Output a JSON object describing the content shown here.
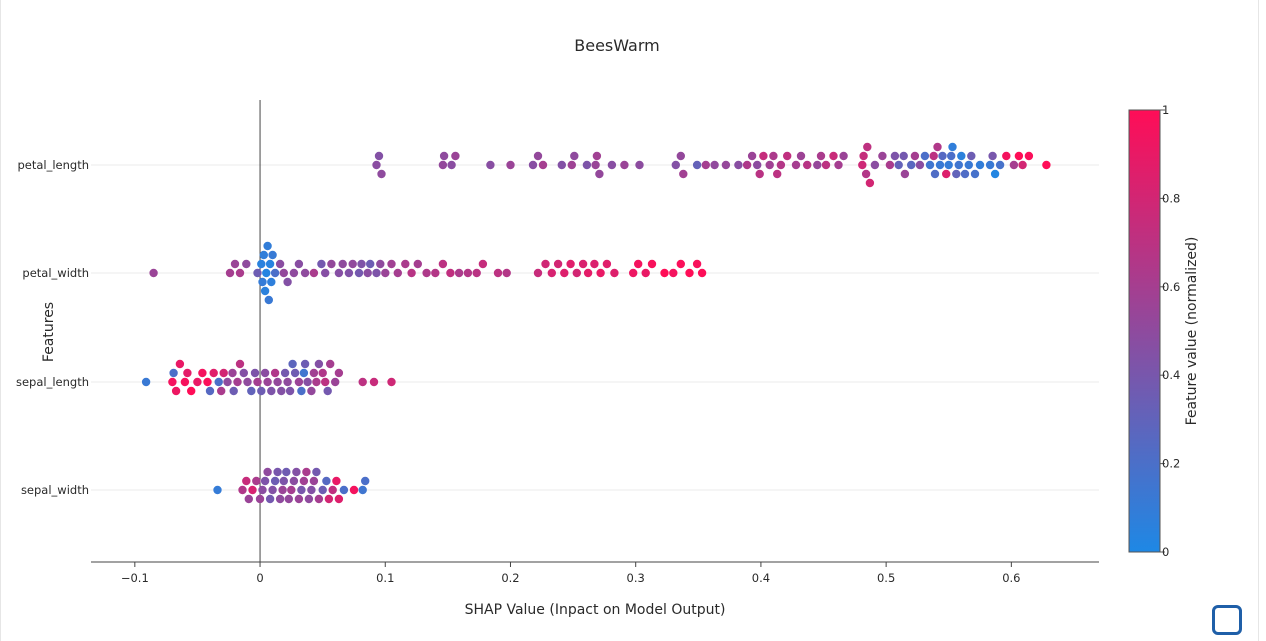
{
  "chart_data": {
    "type": "scatter",
    "title": "BeesWarm",
    "xlabel": "SHAP Value (Inpact on Model Output)",
    "ylabel": "Features",
    "xlim": [
      -0.135,
      0.67
    ],
    "xticks": [
      -0.1,
      0,
      0.1,
      0.2,
      0.3,
      0.4,
      0.5,
      0.6
    ],
    "xtick_labels": [
      "−0.1",
      "0",
      "0.1",
      "0.2",
      "0.3",
      "0.4",
      "0.5",
      "0.6"
    ],
    "categories": [
      "petal_length",
      "petal_width",
      "sepal_length",
      "sepal_width"
    ],
    "zero_line": true,
    "grid": "horizontal",
    "colorbar": {
      "label": "Feature value (normalized)",
      "range": [
        0,
        1
      ],
      "ticks": [
        0,
        0.2,
        0.4,
        0.6,
        0.8,
        1
      ],
      "tick_labels": [
        "0",
        "0.2",
        "0.4",
        "0.6",
        "0.8",
        "1"
      ],
      "colors": [
        "#1e88e5",
        "#ff0d57"
      ]
    },
    "series": [
      {
        "feature": "petal_length",
        "points": [
          [
            0.093,
            0.48
          ],
          [
            0.095,
            0.45
          ],
          [
            0.097,
            0.5
          ],
          [
            0.146,
            0.52
          ],
          [
            0.147,
            0.5
          ],
          [
            0.153,
            0.48
          ],
          [
            0.156,
            0.55
          ],
          [
            0.184,
            0.47
          ],
          [
            0.2,
            0.55
          ],
          [
            0.218,
            0.47
          ],
          [
            0.222,
            0.52
          ],
          [
            0.226,
            0.6
          ],
          [
            0.241,
            0.45
          ],
          [
            0.249,
            0.57
          ],
          [
            0.251,
            0.5
          ],
          [
            0.261,
            0.42
          ],
          [
            0.268,
            0.54
          ],
          [
            0.269,
            0.58
          ],
          [
            0.271,
            0.52
          ],
          [
            0.281,
            0.47
          ],
          [
            0.291,
            0.55
          ],
          [
            0.303,
            0.49
          ],
          [
            0.332,
            0.45
          ],
          [
            0.336,
            0.52
          ],
          [
            0.338,
            0.58
          ],
          [
            0.349,
            0.31
          ],
          [
            0.356,
            0.6
          ],
          [
            0.363,
            0.51
          ],
          [
            0.372,
            0.53
          ],
          [
            0.382,
            0.47
          ],
          [
            0.389,
            0.64
          ],
          [
            0.393,
            0.55
          ],
          [
            0.397,
            0.49
          ],
          [
            0.399,
            0.69
          ],
          [
            0.402,
            0.74
          ],
          [
            0.407,
            0.58
          ],
          [
            0.41,
            0.63
          ],
          [
            0.413,
            0.7
          ],
          [
            0.416,
            0.66
          ],
          [
            0.421,
            0.72
          ],
          [
            0.428,
            0.6
          ],
          [
            0.432,
            0.56
          ],
          [
            0.437,
            0.68
          ],
          [
            0.445,
            0.53
          ],
          [
            0.448,
            0.62
          ],
          [
            0.452,
            0.7
          ],
          [
            0.458,
            0.76
          ],
          [
            0.462,
            0.6
          ],
          [
            0.466,
            0.55
          ],
          [
            0.481,
            0.78
          ],
          [
            0.482,
            0.74
          ],
          [
            0.484,
            0.66
          ],
          [
            0.485,
            0.71
          ],
          [
            0.487,
            0.8
          ],
          [
            0.491,
            0.48
          ],
          [
            0.497,
            0.55
          ],
          [
            0.503,
            0.62
          ],
          [
            0.507,
            0.42
          ],
          [
            0.51,
            0.31
          ],
          [
            0.514,
            0.38
          ],
          [
            0.515,
            0.55
          ],
          [
            0.52,
            0.26
          ],
          [
            0.523,
            0.6
          ],
          [
            0.527,
            0.48
          ],
          [
            0.531,
            0.2
          ],
          [
            0.535,
            0.15
          ],
          [
            0.538,
            0.7
          ],
          [
            0.539,
            0.22
          ],
          [
            0.541,
            0.65
          ],
          [
            0.543,
            0.12
          ],
          [
            0.545,
            0.25
          ],
          [
            0.548,
            0.85
          ],
          [
            0.55,
            0.1
          ],
          [
            0.552,
            0.2
          ],
          [
            0.553,
            0.08
          ],
          [
            0.556,
            0.3
          ],
          [
            0.558,
            0.15
          ],
          [
            0.56,
            0.06
          ],
          [
            0.563,
            0.22
          ],
          [
            0.566,
            0.12
          ],
          [
            0.568,
            0.35
          ],
          [
            0.571,
            0.18
          ],
          [
            0.575,
            0.09
          ],
          [
            0.583,
            0.12
          ],
          [
            0.585,
            0.4
          ],
          [
            0.587,
            0.02
          ],
          [
            0.591,
            0.18
          ],
          [
            0.596,
            0.95
          ],
          [
            0.602,
            0.6
          ],
          [
            0.606,
            1.0
          ],
          [
            0.609,
            0.8
          ],
          [
            0.614,
            0.98
          ],
          [
            0.628,
            1.0
          ]
        ]
      },
      {
        "feature": "petal_width",
        "points": [
          [
            -0.085,
            0.55
          ],
          [
            -0.024,
            0.6
          ],
          [
            -0.02,
            0.55
          ],
          [
            -0.016,
            0.62
          ],
          [
            -0.011,
            0.5
          ],
          [
            -0.002,
            0.35
          ],
          [
            0.001,
            0.05
          ],
          [
            0.002,
            0.1
          ],
          [
            0.003,
            0.08
          ],
          [
            0.004,
            0.06
          ],
          [
            0.005,
            0.03
          ],
          [
            0.006,
            0.09
          ],
          [
            0.007,
            0.12
          ],
          [
            0.008,
            0.04
          ],
          [
            0.009,
            0.07
          ],
          [
            0.01,
            0.11
          ],
          [
            0.012,
            0.2
          ],
          [
            0.016,
            0.48
          ],
          [
            0.019,
            0.52
          ],
          [
            0.022,
            0.45
          ],
          [
            0.027,
            0.5
          ],
          [
            0.031,
            0.47
          ],
          [
            0.036,
            0.5
          ],
          [
            0.043,
            0.62
          ],
          [
            0.049,
            0.38
          ],
          [
            0.052,
            0.46
          ],
          [
            0.057,
            0.52
          ],
          [
            0.063,
            0.46
          ],
          [
            0.066,
            0.5
          ],
          [
            0.071,
            0.44
          ],
          [
            0.074,
            0.51
          ],
          [
            0.079,
            0.38
          ],
          [
            0.081,
            0.43
          ],
          [
            0.086,
            0.48
          ],
          [
            0.088,
            0.35
          ],
          [
            0.093,
            0.42
          ],
          [
            0.096,
            0.5
          ],
          [
            0.1,
            0.55
          ],
          [
            0.105,
            0.58
          ],
          [
            0.11,
            0.6
          ],
          [
            0.116,
            0.62
          ],
          [
            0.121,
            0.68
          ],
          [
            0.126,
            0.6
          ],
          [
            0.133,
            0.64
          ],
          [
            0.14,
            0.66
          ],
          [
            0.146,
            0.7
          ],
          [
            0.152,
            0.72
          ],
          [
            0.159,
            0.63
          ],
          [
            0.166,
            0.66
          ],
          [
            0.173,
            0.69
          ],
          [
            0.178,
            0.74
          ],
          [
            0.19,
            0.7
          ],
          [
            0.197,
            0.66
          ],
          [
            0.222,
            0.75
          ],
          [
            0.228,
            0.79
          ],
          [
            0.233,
            0.82
          ],
          [
            0.238,
            0.8
          ],
          [
            0.243,
            0.85
          ],
          [
            0.248,
            0.86
          ],
          [
            0.253,
            0.8
          ],
          [
            0.258,
            0.83
          ],
          [
            0.262,
            0.88
          ],
          [
            0.267,
            0.84
          ],
          [
            0.272,
            0.9
          ],
          [
            0.277,
            0.86
          ],
          [
            0.283,
            0.85
          ],
          [
            0.298,
            0.92
          ],
          [
            0.302,
            0.95
          ],
          [
            0.308,
            0.9
          ],
          [
            0.313,
            0.97
          ],
          [
            0.323,
            1.0
          ],
          [
            0.33,
            0.95
          ],
          [
            0.336,
            0.98
          ],
          [
            0.343,
            1.0
          ],
          [
            0.349,
            0.97
          ],
          [
            0.353,
            0.99
          ]
        ]
      },
      {
        "feature": "sepal_length",
        "points": [
          [
            -0.091,
            0.12
          ],
          [
            -0.07,
            0.95
          ],
          [
            -0.069,
            0.2
          ],
          [
            -0.067,
            0.92
          ],
          [
            -0.064,
            0.9
          ],
          [
            -0.06,
            0.96
          ],
          [
            -0.058,
            0.88
          ],
          [
            -0.055,
            1.0
          ],
          [
            -0.05,
            0.9
          ],
          [
            -0.046,
            0.95
          ],
          [
            -0.042,
            0.98
          ],
          [
            -0.04,
            0.25
          ],
          [
            -0.037,
            0.86
          ],
          [
            -0.033,
            0.2
          ],
          [
            -0.031,
            0.62
          ],
          [
            -0.029,
            0.8
          ],
          [
            -0.026,
            0.5
          ],
          [
            -0.022,
            0.55
          ],
          [
            -0.021,
            0.35
          ],
          [
            -0.018,
            0.6
          ],
          [
            -0.016,
            0.7
          ],
          [
            -0.013,
            0.45
          ],
          [
            -0.01,
            0.5
          ],
          [
            -0.007,
            0.3
          ],
          [
            -0.004,
            0.42
          ],
          [
            -0.002,
            0.6
          ],
          [
            0.001,
            0.35
          ],
          [
            0.004,
            0.48
          ],
          [
            0.006,
            0.55
          ],
          [
            0.009,
            0.42
          ],
          [
            0.012,
            0.65
          ],
          [
            0.014,
            0.52
          ],
          [
            0.017,
            0.45
          ],
          [
            0.02,
            0.38
          ],
          [
            0.022,
            0.5
          ],
          [
            0.024,
            0.42
          ],
          [
            0.026,
            0.28
          ],
          [
            0.028,
            0.36
          ],
          [
            0.031,
            0.55
          ],
          [
            0.033,
            0.2
          ],
          [
            0.035,
            0.15
          ],
          [
            0.036,
            0.35
          ],
          [
            0.038,
            0.46
          ],
          [
            0.041,
            0.52
          ],
          [
            0.043,
            0.58
          ],
          [
            0.045,
            0.62
          ],
          [
            0.047,
            0.45
          ],
          [
            0.05,
            0.65
          ],
          [
            0.052,
            0.7
          ],
          [
            0.054,
            0.38
          ],
          [
            0.056,
            0.6
          ],
          [
            0.06,
            0.55
          ],
          [
            0.063,
            0.6
          ],
          [
            0.082,
            0.7
          ],
          [
            0.091,
            0.75
          ],
          [
            0.105,
            0.78
          ]
        ]
      },
      {
        "feature": "sepal_width",
        "points": [
          [
            -0.034,
            0.1
          ],
          [
            -0.014,
            0.65
          ],
          [
            -0.011,
            0.75
          ],
          [
            -0.009,
            0.55
          ],
          [
            -0.006,
            0.82
          ],
          [
            -0.003,
            0.62
          ],
          [
            0.0,
            0.55
          ],
          [
            0.002,
            0.48
          ],
          [
            0.004,
            0.42
          ],
          [
            0.006,
            0.5
          ],
          [
            0.008,
            0.38
          ],
          [
            0.01,
            0.45
          ],
          [
            0.012,
            0.35
          ],
          [
            0.014,
            0.4
          ],
          [
            0.016,
            0.5
          ],
          [
            0.018,
            0.55
          ],
          [
            0.019,
            0.42
          ],
          [
            0.021,
            0.36
          ],
          [
            0.023,
            0.52
          ],
          [
            0.025,
            0.6
          ],
          [
            0.027,
            0.48
          ],
          [
            0.029,
            0.45
          ],
          [
            0.031,
            0.55
          ],
          [
            0.033,
            0.4
          ],
          [
            0.035,
            0.58
          ],
          [
            0.037,
            0.62
          ],
          [
            0.039,
            0.5
          ],
          [
            0.041,
            0.45
          ],
          [
            0.043,
            0.55
          ],
          [
            0.045,
            0.38
          ],
          [
            0.047,
            0.6
          ],
          [
            0.05,
            0.35
          ],
          [
            0.053,
            0.25
          ],
          [
            0.055,
            0.8
          ],
          [
            0.058,
            0.72
          ],
          [
            0.061,
            0.9
          ],
          [
            0.063,
            0.85
          ],
          [
            0.067,
            0.2
          ],
          [
            0.075,
            0.95
          ],
          [
            0.082,
            0.15
          ],
          [
            0.084,
            0.2
          ]
        ]
      }
    ]
  }
}
